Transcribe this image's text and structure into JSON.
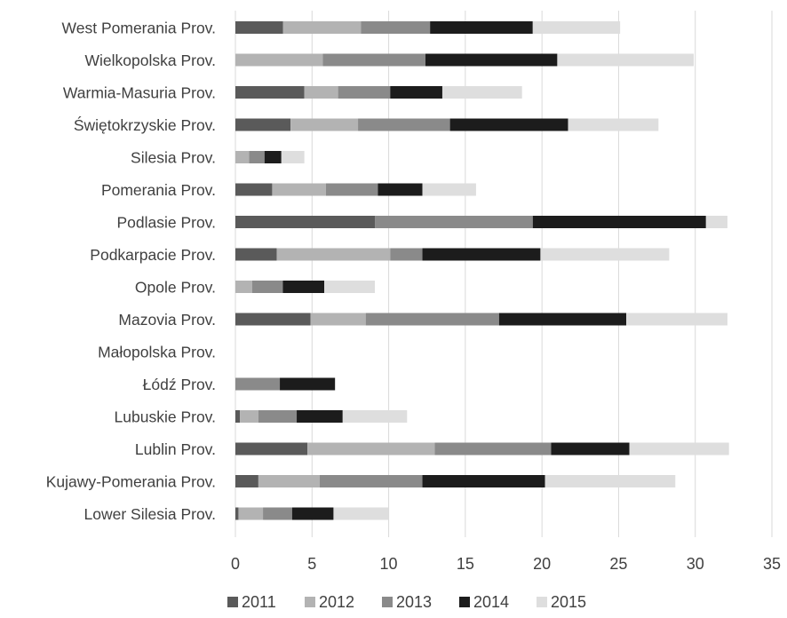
{
  "chart_data": {
    "type": "bar",
    "orientation": "horizontal",
    "stacked": true,
    "categories": [
      "West Pomerania Prov.",
      "Wielkopolska Prov.",
      "Warmia-Masuria Prov.",
      "Świętokrzyskie Prov.",
      "Silesia Prov.",
      "Pomerania Prov.",
      "Podlasie Prov.",
      "Podkarpacie Prov.",
      "Opole Prov.",
      "Mazovia Prov.",
      "Małopolska Prov.",
      "Łódź Prov.",
      "Lubuskie Prov.",
      "Lublin Prov.",
      "Kujawy-Pomerania Prov.",
      "Lower Silesia Prov."
    ],
    "series": [
      {
        "name": "2011",
        "color": "#5a5a5a",
        "values": [
          3.1,
          0,
          4.5,
          3.6,
          0,
          2.4,
          9.1,
          2.7,
          0,
          4.9,
          0,
          0,
          0.3,
          4.7,
          1.5,
          0.2
        ]
      },
      {
        "name": "2012",
        "color": "#b3b3b3",
        "values": [
          5.1,
          5.7,
          2.2,
          4.4,
          0.9,
          3.5,
          0,
          7.4,
          1.1,
          3.6,
          0,
          0,
          1.2,
          8.3,
          4.0,
          1.6
        ]
      },
      {
        "name": "2013",
        "color": "#8a8a8a",
        "values": [
          4.5,
          6.7,
          3.4,
          6.0,
          1.0,
          3.4,
          10.3,
          2.1,
          2.0,
          8.7,
          0,
          2.9,
          2.5,
          7.6,
          6.7,
          1.9
        ]
      },
      {
        "name": "2014",
        "color": "#1c1c1c",
        "values": [
          6.7,
          8.6,
          3.4,
          7.7,
          1.1,
          2.9,
          11.3,
          7.7,
          2.7,
          8.3,
          0,
          3.6,
          3.0,
          5.1,
          8.0,
          2.7
        ]
      },
      {
        "name": "2015",
        "color": "#dedede",
        "values": [
          5.7,
          8.9,
          5.2,
          5.9,
          1.5,
          3.5,
          1.4,
          8.4,
          3.3,
          6.6,
          0,
          0,
          4.2,
          6.5,
          8.5,
          3.6
        ]
      }
    ],
    "xlim": [
      0,
      35
    ],
    "xticks": [
      "0",
      "5",
      "10",
      "15",
      "20",
      "25",
      "30",
      "35"
    ],
    "grid": true,
    "legend": "bottom"
  }
}
